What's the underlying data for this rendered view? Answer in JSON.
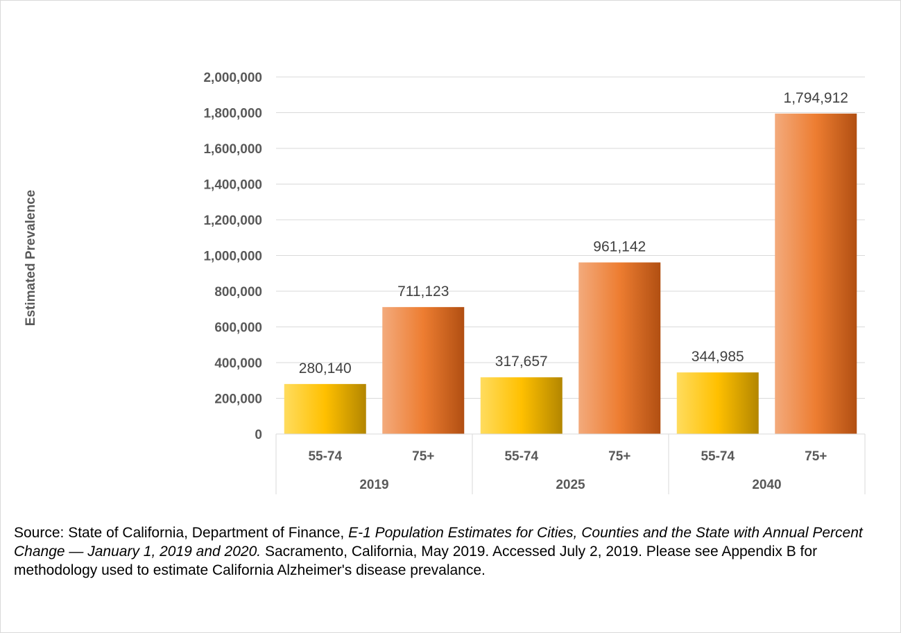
{
  "chart_data": {
    "type": "bar",
    "ylabel": "Estimated Prevalence",
    "ylim": [
      0,
      2000000
    ],
    "y_ticks": [
      0,
      200000,
      400000,
      600000,
      800000,
      1000000,
      1200000,
      1400000,
      1600000,
      1800000,
      2000000
    ],
    "y_tick_labels": [
      "0",
      "200,000",
      "400,000",
      "600,000",
      "800,000",
      "1,000,000",
      "1,200,000",
      "1,400,000",
      "1,600,000",
      "1,800,000",
      "2,000,000"
    ],
    "grid": true,
    "groups": [
      {
        "label": "2019",
        "bars": [
          {
            "category": "55-74",
            "value": 280140,
            "label": "280,140"
          },
          {
            "category": "75+",
            "value": 711123,
            "label": "711,123"
          }
        ]
      },
      {
        "label": "2025",
        "bars": [
          {
            "category": "55-74",
            "value": 317657,
            "label": "317,657"
          },
          {
            "category": "75+",
            "value": 961142,
            "label": "961,142"
          }
        ]
      },
      {
        "label": "2040",
        "bars": [
          {
            "category": "55-74",
            "value": 344985,
            "label": "344,985"
          },
          {
            "category": "75+",
            "value": 1794912,
            "label": "1,794,912"
          }
        ]
      }
    ],
    "colors": {
      "55-74": "#ffc000",
      "75+": "#ed7d31"
    }
  },
  "source": {
    "part1": "Source: State of California, Department of Finance, ",
    "italic": "E-1 Population Estimates for Cities, Counties and the State with Annual Percent Change — January 1, 2019 and 2020.",
    "part2": " Sacramento, California, May 2019. Accessed July 2, 2019. Please see Appendix B for methodology used to estimate California Alzheimer's disease prevalance."
  }
}
